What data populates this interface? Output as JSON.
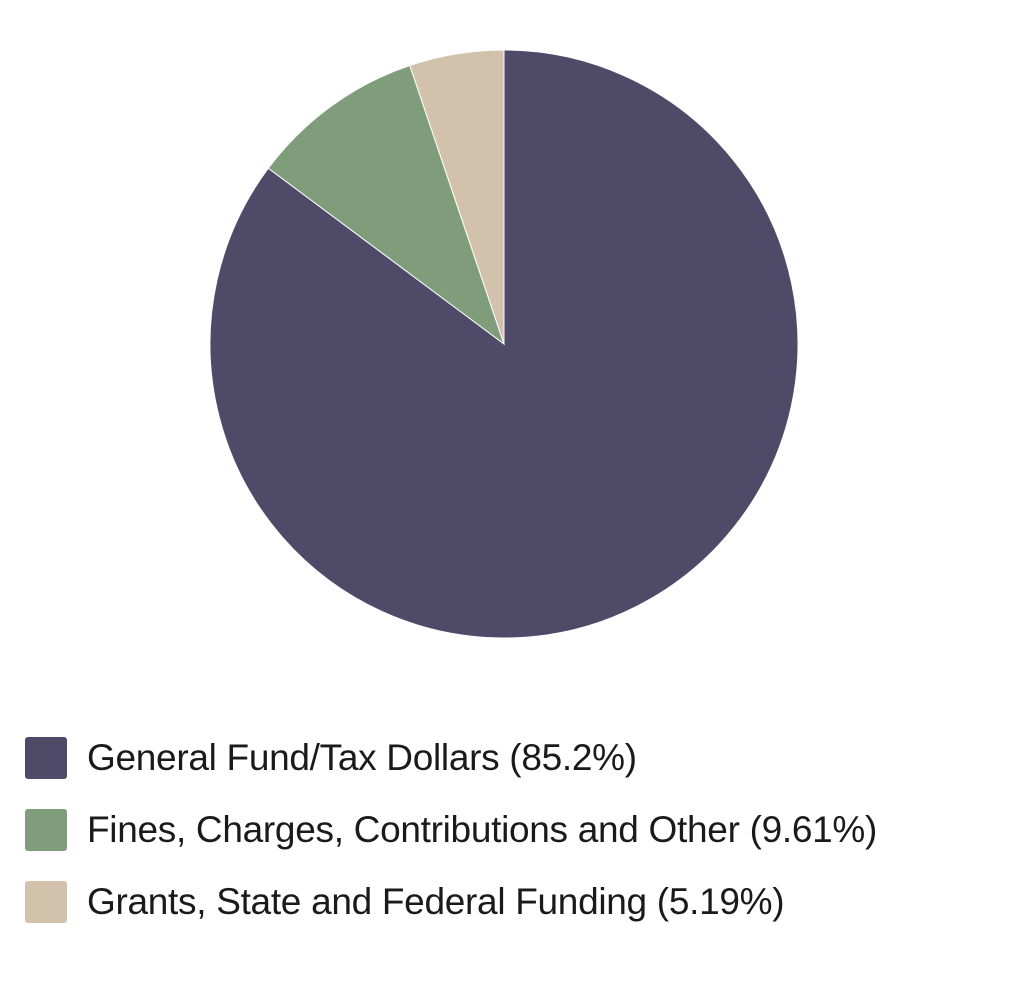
{
  "chart_data": {
    "type": "pie",
    "title": "",
    "slices": [
      {
        "label": "General Fund/Tax Dollars (85.2%)",
        "value": 85.2,
        "color": "#4e4a68"
      },
      {
        "label": "Fines, Charges, Contributions and Other (9.61%)",
        "value": 9.61,
        "color": "#7f9d7a"
      },
      {
        "label": "Grants, State and Federal Funding (5.19%)",
        "value": 5.19,
        "color": "#d2c2ab"
      }
    ],
    "start": "top",
    "direction": "clockwise",
    "legend_position": "bottom"
  }
}
